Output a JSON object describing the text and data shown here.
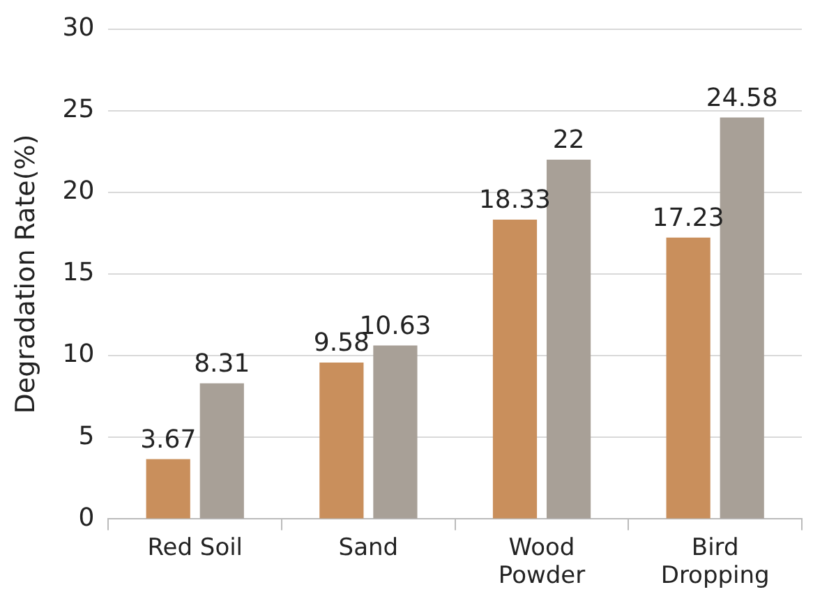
{
  "chart_data": {
    "type": "bar",
    "ylabel": "Degradation Rate(%)",
    "categories": [
      "Red Soil",
      "Sand",
      "Wood Powder",
      "Bird Dropping"
    ],
    "series": [
      {
        "color": "#c98f5c",
        "values": [
          3.67,
          9.58,
          18.33,
          17.23
        ]
      },
      {
        "color": "#a8a097",
        "values": [
          8.31,
          10.63,
          22,
          24.58
        ]
      }
    ],
    "ylim": [
      0,
      30
    ],
    "yticks": [
      0,
      5,
      10,
      15,
      20,
      25,
      30
    ],
    "grid": "y",
    "legend": false,
    "data_labels": true
  }
}
